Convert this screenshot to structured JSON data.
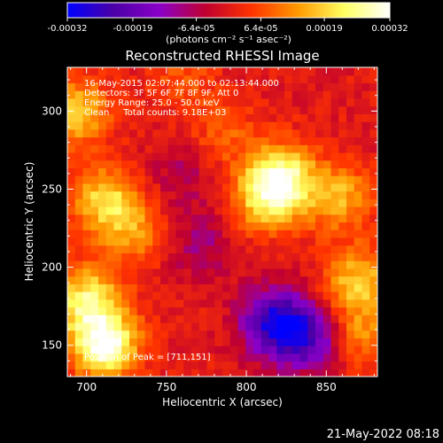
{
  "chart_data": {
    "type": "heatmap",
    "title": "Reconstructed RHESSI Image",
    "xlabel": "Heliocentric X (arcsec)",
    "ylabel": "Heliocentric Y (arcsec)",
    "xlim": [
      688,
      882
    ],
    "ylim": [
      130,
      328
    ],
    "xticks": [
      700,
      750,
      800,
      850
    ],
    "yticks": [
      150,
      200,
      250,
      300
    ],
    "colorbar": {
      "label": "(photons cm⁻² s⁻¹ asec⁻²)",
      "range": [
        -0.00032,
        0.00032
      ],
      "ticks": [
        "-0.00032",
        "-0.00019",
        "-6.4e-05",
        "6.4e-05",
        "0.00019",
        "0.00032"
      ],
      "colors": [
        "#0000ff",
        "#4b00a6",
        "#8a00c8",
        "#c00030",
        "#ff3300",
        "#ff9900",
        "#ffff60",
        "#ffffff"
      ]
    },
    "annotations": [
      "16-May-2015 02:07:44.000 to 02:13:44.000",
      "Detectors: 3F 5F 6F 7F 8F 9F, Att 0",
      "Energy Range: 25.0 - 50.0 keV",
      "Clean     Total counts: 9.18E+03"
    ],
    "peak_text": "Position of Peak = [711,151]",
    "sources": [
      {
        "x": 711,
        "y": 151,
        "peak": 0.00032
      },
      {
        "x": 700,
        "y": 180,
        "peak": 0.00022
      },
      {
        "x": 712,
        "y": 243,
        "peak": 0.0002
      },
      {
        "x": 693,
        "y": 300,
        "peak": 0.00019
      },
      {
        "x": 730,
        "y": 222,
        "peak": 0.00012
      },
      {
        "x": 822,
        "y": 258,
        "peak": 0.00025
      },
      {
        "x": 812,
        "y": 243,
        "peak": 0.00017
      },
      {
        "x": 858,
        "y": 245,
        "peak": 0.00016
      },
      {
        "x": 870,
        "y": 192,
        "peak": 0.00018
      },
      {
        "x": 872,
        "y": 158,
        "peak": 0.00012
      },
      {
        "x": 786,
        "y": 285,
        "peak": 8e-05
      },
      {
        "x": 760,
        "y": 320,
        "peak": 7e-05
      },
      {
        "x": 818,
        "y": 165,
        "peak": -0.00026
      },
      {
        "x": 838,
        "y": 155,
        "peak": -0.0002
      },
      {
        "x": 770,
        "y": 215,
        "peak": -9e-05
      },
      {
        "x": 760,
        "y": 260,
        "peak": -7e-05
      }
    ]
  },
  "footer": {
    "timestamp": "21-May-2022 08:18"
  }
}
